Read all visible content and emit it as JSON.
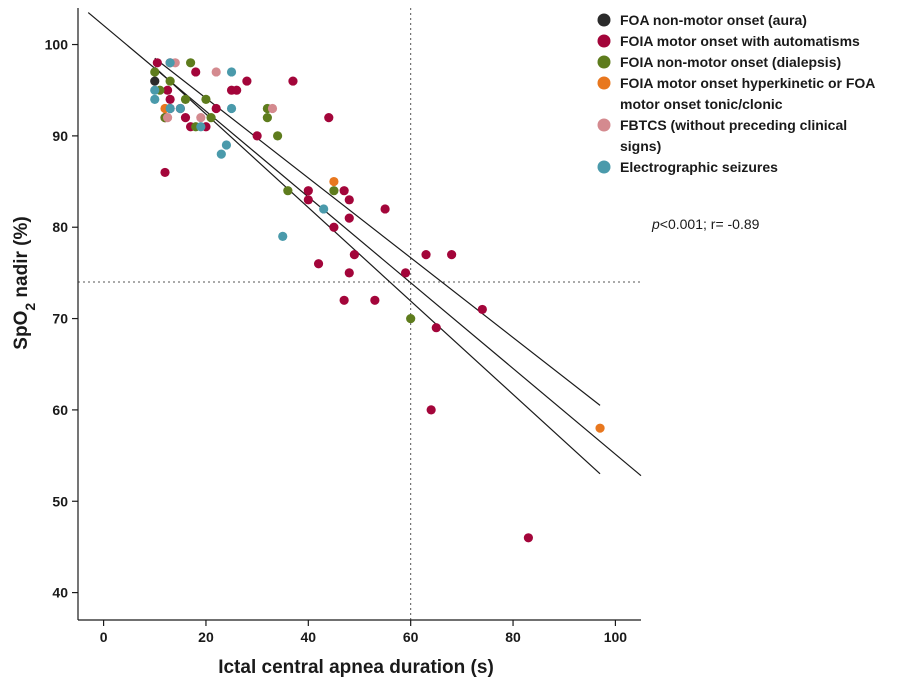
{
  "chart_data": {
    "type": "scatter",
    "xlabel": "Ictal central apnea duration (s)",
    "ylabel": "SpO2 nadir (%)",
    "xlim": [
      -5,
      105
    ],
    "ylim": [
      37,
      104
    ],
    "xticks": [
      0,
      20,
      40,
      60,
      80,
      100
    ],
    "yticks": [
      40,
      50,
      60,
      70,
      80,
      90,
      100
    ],
    "grid": false,
    "legend_position": "top-right",
    "annotation": {
      "p_symbol": "p",
      "rest": "<0.001; r= -0.89"
    },
    "reference_lines": {
      "vertical_x": 60,
      "horizontal_y": 74
    },
    "regression": {
      "fit": {
        "x": [
          -3,
          105
        ],
        "y": [
          103.5,
          52.8
        ]
      },
      "ci_upper": {
        "x": [
          10,
          97
        ],
        "y": [
          98.5,
          60.5
        ]
      },
      "ci_lower": {
        "x": [
          10,
          97
        ],
        "y": [
          97.5,
          53.0
        ]
      }
    },
    "series": [
      {
        "name": "FOA non-motor onset (aura)",
        "color": "#2b2b2b",
        "x": [
          10
        ],
        "y": [
          96
        ]
      },
      {
        "name": "FOIA motor onset with automatisms",
        "color": "#a3053a",
        "x": [
          10.5,
          12,
          12,
          12.5,
          13,
          13,
          13,
          15,
          16,
          17,
          18,
          20,
          22,
          25,
          26,
          28,
          30,
          37,
          40,
          40,
          44,
          45,
          47,
          48,
          48,
          49,
          42,
          47,
          48,
          53,
          55,
          59,
          63,
          64,
          65,
          68,
          74,
          83
        ],
        "y": [
          98,
          92,
          86,
          95,
          93,
          94,
          98,
          93,
          92,
          91,
          97,
          91,
          93,
          95,
          95,
          96,
          90,
          96,
          84,
          83,
          92,
          80,
          84,
          83,
          81,
          77,
          76,
          72,
          75,
          72,
          82,
          75,
          77,
          60,
          69,
          77,
          71,
          46
        ]
      },
      {
        "name": "FOIA non-motor onset (dialepsis)",
        "color": "#5e7c1d",
        "x": [
          10,
          11,
          12,
          13,
          16,
          17,
          18,
          20,
          21,
          32,
          32,
          34,
          36,
          45,
          60
        ],
        "y": [
          97,
          95,
          92,
          96,
          94,
          98,
          91,
          94,
          92,
          93,
          92,
          90,
          84,
          84,
          70
        ]
      },
      {
        "name": "FOIA motor onset hyperkinetic or FOA motor onset tonic/clonic",
        "color": "#e8771e",
        "x": [
          12,
          45,
          97
        ],
        "y": [
          93,
          85,
          58
        ]
      },
      {
        "name": "FBTCS (without preceding clinical signs)",
        "color": "#d48a8f",
        "x": [
          12.5,
          14,
          19,
          22,
          33
        ],
        "y": [
          92,
          98,
          92,
          97,
          93
        ]
      },
      {
        "name": "Electrographic seizures",
        "color": "#4a9aab",
        "x": [
          10,
          10,
          13,
          13,
          15,
          19,
          23,
          24,
          25,
          25,
          35,
          43
        ],
        "y": [
          95,
          94,
          98,
          93,
          93,
          91,
          88,
          89,
          97,
          93,
          79,
          82
        ]
      }
    ]
  }
}
